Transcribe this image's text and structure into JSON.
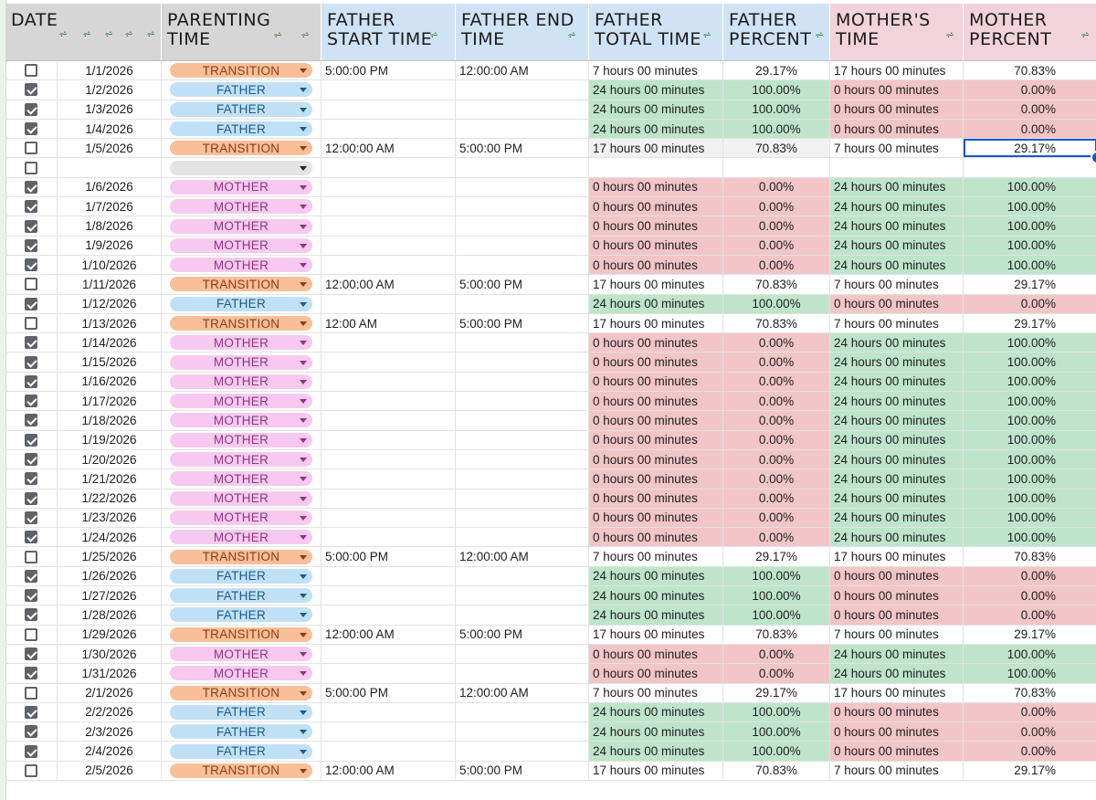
{
  "header": {
    "columns": [
      {
        "label": "DATE",
        "bg": "#d6d6d6"
      },
      {
        "label": "PARENTING\nTIME",
        "bg": "#d6d6d6"
      },
      {
        "label": "FATHER\nSTART TIME",
        "bg": "#cfe3f5"
      },
      {
        "label": "FATHER END\nTIME",
        "bg": "#cfe3f5"
      },
      {
        "label": "FATHER\nTOTAL TIME",
        "bg": "#cfe3f5"
      },
      {
        "label": "FATHER\nPERCENT",
        "bg": "#cfe3f5"
      },
      {
        "label": "MOTHER'S\nTIME",
        "bg": "#f2d3dc"
      },
      {
        "label": "MOTHER\nPERCENT",
        "bg": "#f2d3dc"
      }
    ]
  },
  "rows": [
    {
      "checked": false,
      "date": "1/1/2026",
      "parenting": "TRANSITION",
      "start": "5:00:00 PM",
      "end": "12:00:00 AM",
      "ftotal": "7 hours 00 minutes",
      "fpct": "29.17%",
      "mtime": "17 hours 00 minutes",
      "mpct": "70.83%"
    },
    {
      "checked": true,
      "date": "1/2/2026",
      "parenting": "FATHER",
      "start": "",
      "end": "",
      "ftotal": "24 hours 00 minutes",
      "fpct": "100.00%",
      "mtime": "0 hours 00 minutes",
      "mpct": "0.00%"
    },
    {
      "checked": true,
      "date": "1/3/2026",
      "parenting": "FATHER",
      "start": "",
      "end": "",
      "ftotal": "24 hours 00 minutes",
      "fpct": "100.00%",
      "mtime": "0 hours 00 minutes",
      "mpct": "0.00%"
    },
    {
      "checked": true,
      "date": "1/4/2026",
      "parenting": "FATHER",
      "start": "",
      "end": "",
      "ftotal": "24 hours 00 minutes",
      "fpct": "100.00%",
      "mtime": "0 hours 00 minutes",
      "mpct": "0.00%"
    },
    {
      "checked": false,
      "date": "1/5/2026",
      "parenting": "TRANSITION",
      "start": "12:00:00 AM",
      "end": "5:00:00 PM",
      "ftotal": "17 hours 00 minutes",
      "fpct": "70.83%",
      "mtime": "7 hours 00 minutes",
      "mpct": "29.17%",
      "selected": true
    },
    {
      "checked": false,
      "date": "",
      "parenting": "",
      "start": "",
      "end": "",
      "ftotal": "",
      "fpct": "",
      "mtime": "",
      "mpct": ""
    },
    {
      "checked": true,
      "date": "1/6/2026",
      "parenting": "MOTHER",
      "start": "",
      "end": "",
      "ftotal": "0 hours 00 minutes",
      "fpct": "0.00%",
      "mtime": "24 hours 00 minutes",
      "mpct": "100.00%"
    },
    {
      "checked": true,
      "date": "1/7/2026",
      "parenting": "MOTHER",
      "start": "",
      "end": "",
      "ftotal": "0 hours 00 minutes",
      "fpct": "0.00%",
      "mtime": "24 hours 00 minutes",
      "mpct": "100.00%"
    },
    {
      "checked": true,
      "date": "1/8/2026",
      "parenting": "MOTHER",
      "start": "",
      "end": "",
      "ftotal": "0 hours 00 minutes",
      "fpct": "0.00%",
      "mtime": "24 hours 00 minutes",
      "mpct": "100.00%"
    },
    {
      "checked": true,
      "date": "1/9/2026",
      "parenting": "MOTHER",
      "start": "",
      "end": "",
      "ftotal": "0 hours 00 minutes",
      "fpct": "0.00%",
      "mtime": "24 hours 00 minutes",
      "mpct": "100.00%"
    },
    {
      "checked": true,
      "date": "1/10/2026",
      "parenting": "MOTHER",
      "start": "",
      "end": "",
      "ftotal": "0 hours 00 minutes",
      "fpct": "0.00%",
      "mtime": "24 hours 00 minutes",
      "mpct": "100.00%"
    },
    {
      "checked": false,
      "date": "1/11/2026",
      "parenting": "TRANSITION",
      "start": "12:00:00 AM",
      "end": "5:00:00 PM",
      "ftotal": "17 hours 00 minutes",
      "fpct": "70.83%",
      "mtime": "7 hours 00 minutes",
      "mpct": "29.17%"
    },
    {
      "checked": true,
      "date": "1/12/2026",
      "parenting": "FATHER",
      "start": "",
      "end": "",
      "ftotal": "24 hours 00 minutes",
      "fpct": "100.00%",
      "mtime": "0 hours 00 minutes",
      "mpct": "0.00%"
    },
    {
      "checked": false,
      "date": "1/13/2026",
      "parenting": "TRANSITION",
      "start": "12:00 AM",
      "end": "5:00:00 PM",
      "ftotal": "17 hours 00 minutes",
      "fpct": "70.83%",
      "mtime": "7 hours 00 minutes",
      "mpct": "29.17%"
    },
    {
      "checked": true,
      "date": "1/14/2026",
      "parenting": "MOTHER",
      "start": "",
      "end": "",
      "ftotal": "0 hours 00 minutes",
      "fpct": "0.00%",
      "mtime": "24 hours 00 minutes",
      "mpct": "100.00%"
    },
    {
      "checked": true,
      "date": "1/15/2026",
      "parenting": "MOTHER",
      "start": "",
      "end": "",
      "ftotal": "0 hours 00 minutes",
      "fpct": "0.00%",
      "mtime": "24 hours 00 minutes",
      "mpct": "100.00%"
    },
    {
      "checked": true,
      "date": "1/16/2026",
      "parenting": "MOTHER",
      "start": "",
      "end": "",
      "ftotal": "0 hours 00 minutes",
      "fpct": "0.00%",
      "mtime": "24 hours 00 minutes",
      "mpct": "100.00%"
    },
    {
      "checked": true,
      "date": "1/17/2026",
      "parenting": "MOTHER",
      "start": "",
      "end": "",
      "ftotal": "0 hours 00 minutes",
      "fpct": "0.00%",
      "mtime": "24 hours 00 minutes",
      "mpct": "100.00%"
    },
    {
      "checked": true,
      "date": "1/18/2026",
      "parenting": "MOTHER",
      "start": "",
      "end": "",
      "ftotal": "0 hours 00 minutes",
      "fpct": "0.00%",
      "mtime": "24 hours 00 minutes",
      "mpct": "100.00%"
    },
    {
      "checked": true,
      "date": "1/19/2026",
      "parenting": "MOTHER",
      "start": "",
      "end": "",
      "ftotal": "0 hours 00 minutes",
      "fpct": "0.00%",
      "mtime": "24 hours 00 minutes",
      "mpct": "100.00%"
    },
    {
      "checked": true,
      "date": "1/20/2026",
      "parenting": "MOTHER",
      "start": "",
      "end": "",
      "ftotal": "0 hours 00 minutes",
      "fpct": "0.00%",
      "mtime": "24 hours 00 minutes",
      "mpct": "100.00%"
    },
    {
      "checked": true,
      "date": "1/21/2026",
      "parenting": "MOTHER",
      "start": "",
      "end": "",
      "ftotal": "0 hours 00 minutes",
      "fpct": "0.00%",
      "mtime": "24 hours 00 minutes",
      "mpct": "100.00%"
    },
    {
      "checked": true,
      "date": "1/22/2026",
      "parenting": "MOTHER",
      "start": "",
      "end": "",
      "ftotal": "0 hours 00 minutes",
      "fpct": "0.00%",
      "mtime": "24 hours 00 minutes",
      "mpct": "100.00%"
    },
    {
      "checked": true,
      "date": "1/23/2026",
      "parenting": "MOTHER",
      "start": "",
      "end": "",
      "ftotal": "0 hours 00 minutes",
      "fpct": "0.00%",
      "mtime": "24 hours 00 minutes",
      "mpct": "100.00%"
    },
    {
      "checked": true,
      "date": "1/24/2026",
      "parenting": "MOTHER",
      "start": "",
      "end": "",
      "ftotal": "0 hours 00 minutes",
      "fpct": "0.00%",
      "mtime": "24 hours 00 minutes",
      "mpct": "100.00%"
    },
    {
      "checked": false,
      "date": "1/25/2026",
      "parenting": "TRANSITION",
      "start": "5:00:00 PM",
      "end": "12:00:00 AM",
      "ftotal": "7 hours 00 minutes",
      "fpct": "29.17%",
      "mtime": "17 hours 00 minutes",
      "mpct": "70.83%"
    },
    {
      "checked": true,
      "date": "1/26/2026",
      "parenting": "FATHER",
      "start": "",
      "end": "",
      "ftotal": "24 hours 00 minutes",
      "fpct": "100.00%",
      "mtime": "0 hours 00 minutes",
      "mpct": "0.00%"
    },
    {
      "checked": true,
      "date": "1/27/2026",
      "parenting": "FATHER",
      "start": "",
      "end": "",
      "ftotal": "24 hours 00 minutes",
      "fpct": "100.00%",
      "mtime": "0 hours 00 minutes",
      "mpct": "0.00%"
    },
    {
      "checked": true,
      "date": "1/28/2026",
      "parenting": "FATHER",
      "start": "",
      "end": "",
      "ftotal": "24 hours 00 minutes",
      "fpct": "100.00%",
      "mtime": "0 hours 00 minutes",
      "mpct": "0.00%"
    },
    {
      "checked": false,
      "date": "1/29/2026",
      "parenting": "TRANSITION",
      "start": "12:00:00 AM",
      "end": "5:00:00 PM",
      "ftotal": "17 hours 00 minutes",
      "fpct": "70.83%",
      "mtime": "7 hours 00 minutes",
      "mpct": "29.17%"
    },
    {
      "checked": true,
      "date": "1/30/2026",
      "parenting": "MOTHER",
      "start": "",
      "end": "",
      "ftotal": "0 hours 00 minutes",
      "fpct": "0.00%",
      "mtime": "24 hours 00 minutes",
      "mpct": "100.00%"
    },
    {
      "checked": true,
      "date": "1/31/2026",
      "parenting": "MOTHER",
      "start": "",
      "end": "",
      "ftotal": "0 hours 00 minutes",
      "fpct": "0.00%",
      "mtime": "24 hours 00 minutes",
      "mpct": "100.00%"
    },
    {
      "checked": false,
      "date": "2/1/2026",
      "parenting": "TRANSITION",
      "start": "5:00:00 PM",
      "end": "12:00:00 AM",
      "ftotal": "7 hours 00 minutes",
      "fpct": "29.17%",
      "mtime": "17 hours 00 minutes",
      "mpct": "70.83%"
    },
    {
      "checked": true,
      "date": "2/2/2026",
      "parenting": "FATHER",
      "start": "",
      "end": "",
      "ftotal": "24 hours 00 minutes",
      "fpct": "100.00%",
      "mtime": "0 hours 00 minutes",
      "mpct": "0.00%"
    },
    {
      "checked": true,
      "date": "2/3/2026",
      "parenting": "FATHER",
      "start": "",
      "end": "",
      "ftotal": "24 hours 00 minutes",
      "fpct": "100.00%",
      "mtime": "0 hours 00 minutes",
      "mpct": "0.00%"
    },
    {
      "checked": true,
      "date": "2/4/2026",
      "parenting": "FATHER",
      "start": "",
      "end": "",
      "ftotal": "24 hours 00 minutes",
      "fpct": "100.00%",
      "mtime": "0 hours 00 minutes",
      "mpct": "0.00%"
    },
    {
      "checked": false,
      "date": "2/5/2026",
      "parenting": "TRANSITION",
      "start": "12:00:00 AM",
      "end": "5:00:00 PM",
      "ftotal": "17 hours 00 minutes",
      "fpct": "70.83%",
      "mtime": "7 hours 00 minutes",
      "mpct": "29.17%"
    }
  ],
  "colors": {
    "father_chip": "#c0e0f6",
    "mother_chip": "#f7c9f0",
    "transition_chip": "#f8bf98",
    "green_cell": "#bfe4cc",
    "red_cell": "#f2c5c8",
    "selection": "#1a56c9"
  },
  "icons": {
    "filter": "filter-icon",
    "dropdown": "chevron-down-icon",
    "checkbox": "checkbox-icon"
  }
}
